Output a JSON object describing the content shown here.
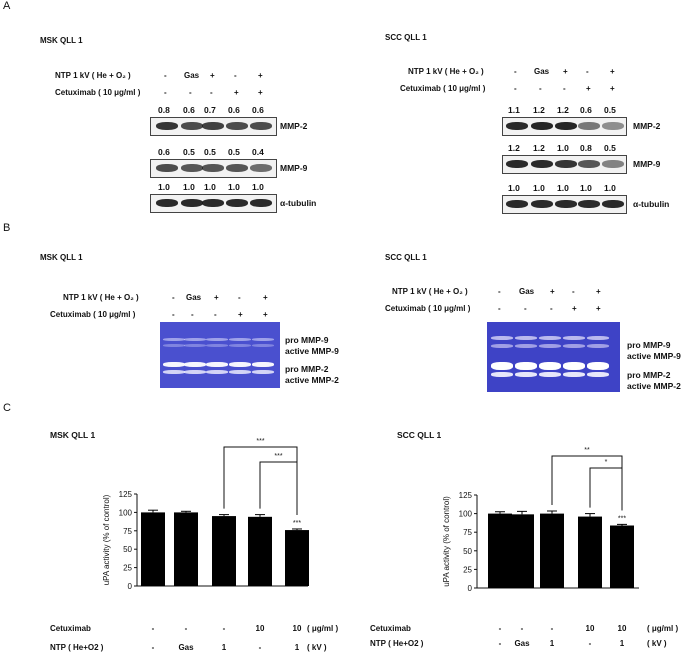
{
  "panelA": {
    "letter": "A",
    "left": {
      "cell_line": "MSK QLL 1",
      "ntp_label": "NTP 1 kV ( He + O₂ )",
      "cetux_label": "Cetuximab ( 10 μg/ml )",
      "ntp_signs": [
        "-",
        "Gas",
        "+",
        "-",
        "+"
      ],
      "cetux_signs": [
        "-",
        "-",
        "-",
        "+",
        "+"
      ],
      "rows": [
        {
          "protein": "MMP-2",
          "values": [
            "0.8",
            "0.6",
            "0.7",
            "0.6",
            "0.6"
          ]
        },
        {
          "protein": "MMP-9",
          "values": [
            "0.6",
            "0.5",
            "0.5",
            "0.5",
            "0.4"
          ]
        },
        {
          "protein": "α-tubulin",
          "values": [
            "1.0",
            "1.0",
            "1.0",
            "1.0",
            "1.0"
          ]
        }
      ]
    },
    "right": {
      "cell_line": "SCC QLL 1",
      "ntp_label": "NTP 1 kV ( He + O₂ )",
      "cetux_label": "Cetuximab ( 10 μg/ml )",
      "ntp_signs": [
        "-",
        "Gas",
        "+",
        "-",
        "+"
      ],
      "cetux_signs": [
        "-",
        "-",
        "-",
        "+",
        "+"
      ],
      "rows": [
        {
          "protein": "MMP-2",
          "values": [
            "1.1",
            "1.2",
            "1.2",
            "0.6",
            "0.5"
          ]
        },
        {
          "protein": "MMP-9",
          "values": [
            "1.2",
            "1.2",
            "1.0",
            "0.8",
            "0.5"
          ]
        },
        {
          "protein": "α-tubulin",
          "values": [
            "1.0",
            "1.0",
            "1.0",
            "1.0",
            "1.0"
          ]
        }
      ]
    }
  },
  "panelB": {
    "letter": "B",
    "left": {
      "cell_line": "MSK QLL 1",
      "ntp_label": "NTP 1 kV ( He + O₂ )",
      "cetux_label": "Cetuximab ( 10 μg/ml )",
      "ntp_signs": [
        "-",
        "Gas",
        "+",
        "-",
        "+"
      ],
      "cetux_signs": [
        "-",
        "-",
        "-",
        "+",
        "+"
      ],
      "markers": [
        "pro MMP-9",
        "active MMP-9",
        "pro MMP-2",
        "active MMP-2"
      ]
    },
    "right": {
      "cell_line": "SCC QLL 1",
      "ntp_label": "NTP 1 kV ( He + O₂ )",
      "cetux_label": "Cetuximab ( 10 μg/ml )",
      "ntp_signs": [
        "-",
        "Gas",
        "+",
        "-",
        "+"
      ],
      "cetux_signs": [
        "-",
        "-",
        "-",
        "+",
        "+"
      ],
      "markers": [
        "pro MMP-9",
        "active MMP-9",
        "pro MMP-2",
        "active MMP-2"
      ]
    }
  },
  "panelC": {
    "letter": "C",
    "row_labels": {
      "cetux": "Cetuximab",
      "ntp": "NTP ( He+O2 )",
      "cetux_unit": "( μg/ml )",
      "ntp_unit": "( kV )"
    },
    "cetux_values": [
      "-",
      "-",
      "-",
      "10",
      "10"
    ],
    "ntp_values": [
      "-",
      "Gas",
      "1",
      "-",
      "1"
    ]
  },
  "chart_data": [
    {
      "type": "bar",
      "title": "MSK QLL 1",
      "ylabel": "uPA activity (% of control)",
      "ylim": [
        0,
        125
      ],
      "yticks": [
        "0",
        "25",
        "50",
        "75",
        "100",
        "125"
      ],
      "categories": [
        "-/-",
        "Gas/-",
        "1/-",
        "-/10",
        "1/10"
      ],
      "values": [
        100,
        100,
        95,
        94,
        76
      ],
      "errors": [
        3,
        1.5,
        2,
        3,
        1.5
      ],
      "significance": [
        {
          "label": "***",
          "bars": [
            4,
            4
          ]
        },
        {
          "label": "***",
          "bars": [
            3,
            4
          ]
        },
        {
          "label": "***",
          "bars": [
            2,
            4
          ]
        }
      ]
    },
    {
      "type": "bar",
      "title": "SCC QLL 1",
      "ylabel": "uPA activity (% of control)",
      "ylim": [
        0,
        125
      ],
      "yticks": [
        "0",
        "25",
        "50",
        "75",
        "100",
        "125"
      ],
      "categories": [
        "-/-",
        "Gas/-",
        "1/-",
        "-/10",
        "1/10"
      ],
      "values": [
        100,
        99,
        100,
        96,
        84
      ],
      "errors": [
        2.5,
        4,
        3.5,
        4,
        1.5
      ],
      "significance": [
        {
          "label": "***",
          "bars": [
            4,
            4
          ]
        },
        {
          "label": "*",
          "bars": [
            3,
            4
          ]
        },
        {
          "label": "**",
          "bars": [
            2,
            4
          ]
        }
      ]
    }
  ]
}
